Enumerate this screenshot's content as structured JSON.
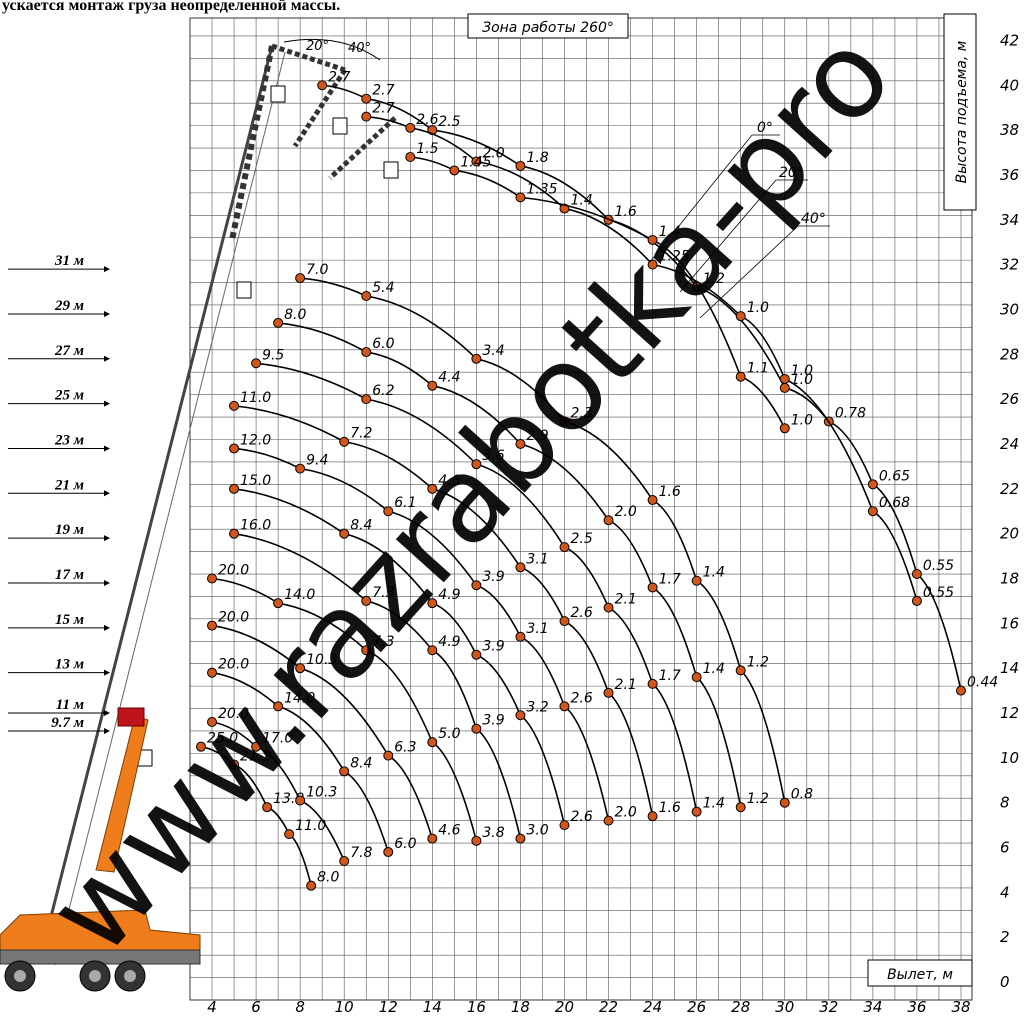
{
  "header_text": "ускается монтаж груза неопределенной массы.",
  "watermark": "www.razrabotka-pro",
  "work_zone": "Зона работы 260°",
  "angle_arc_labels": [
    "20°",
    "40°"
  ],
  "jib_angles": [
    "0°",
    "20°",
    "40°"
  ],
  "chart_data": {
    "type": "line",
    "xlabel": "Вылет, м",
    "ylabel": "Высота подъема, м",
    "xlim": [
      3,
      38.5
    ],
    "ylim": [
      -0.8,
      43
    ],
    "x_ticks": [
      "4",
      "6",
      "8",
      "10",
      "12",
      "14",
      "16",
      "18",
      "20",
      "22",
      "24",
      "26",
      "28",
      "30",
      "32",
      "34",
      "36",
      "38"
    ],
    "y_ticks": [
      "0",
      "2",
      "4",
      "6",
      "8",
      "10",
      "12",
      "14",
      "16",
      "18",
      "20",
      "22",
      "24",
      "26",
      "28",
      "30",
      "32",
      "34",
      "36",
      "38",
      "40",
      "42"
    ],
    "boom_length_labels": [
      {
        "label": "31 м",
        "y": 31.8
      },
      {
        "label": "29 м",
        "y": 29.8
      },
      {
        "label": "27 м",
        "y": 27.8
      },
      {
        "label": "25 м",
        "y": 25.8
      },
      {
        "label": "23 м",
        "y": 23.8
      },
      {
        "label": "21 м",
        "y": 21.8
      },
      {
        "label": "19 м",
        "y": 19.8
      },
      {
        "label": "17 м",
        "y": 17.8
      },
      {
        "label": "15 м",
        "y": 15.8
      },
      {
        "label": "13 м",
        "y": 13.8
      },
      {
        "label": "11 м",
        "y": 12.0
      },
      {
        "label": "9.7 м",
        "y": 11.2
      }
    ],
    "series": [
      {
        "points": [
          {
            "x": 3.5,
            "y": 10.5,
            "label": "25.0"
          },
          {
            "x": 5.0,
            "y": 9.7,
            "label": "21.2"
          },
          {
            "x": 6.5,
            "y": 7.8,
            "label": "13.0"
          },
          {
            "x": 7.5,
            "y": 6.6,
            "label": "11.0"
          },
          {
            "x": 8.5,
            "y": 4.3,
            "label": "8.0"
          }
        ]
      },
      {
        "points": [
          {
            "x": 4.0,
            "y": 11.6,
            "label": "20.0"
          },
          {
            "x": 6.0,
            "y": 10.5,
            "label": "17.0"
          },
          {
            "x": 8.0,
            "y": 8.1,
            "label": "10.3"
          },
          {
            "x": 10.0,
            "y": 5.4,
            "label": "7.8"
          }
        ]
      },
      {
        "points": [
          {
            "x": 4.0,
            "y": 13.8,
            "label": "20.0"
          },
          {
            "x": 7.0,
            "y": 12.3,
            "label": "14.0"
          },
          {
            "x": 10.0,
            "y": 9.4,
            "label": "8.4"
          },
          {
            "x": 12.0,
            "y": 5.8,
            "label": "6.0"
          }
        ]
      },
      {
        "points": [
          {
            "x": 4.0,
            "y": 15.9,
            "label": "20.0"
          },
          {
            "x": 8.0,
            "y": 14.0,
            "label": "10.3"
          },
          {
            "x": 12.0,
            "y": 10.1,
            "label": "6.3"
          },
          {
            "x": 14.0,
            "y": 6.4,
            "label": "4.6"
          }
        ]
      },
      {
        "points": [
          {
            "x": 4.0,
            "y": 18.0,
            "label": "20.0"
          },
          {
            "x": 7.0,
            "y": 16.9,
            "label": "14.0"
          },
          {
            "x": 11.0,
            "y": 14.8,
            "label": "7.3"
          },
          {
            "x": 14.0,
            "y": 10.7,
            "label": "5.0"
          },
          {
            "x": 16.0,
            "y": 6.3,
            "label": "3.8"
          }
        ]
      },
      {
        "points": [
          {
            "x": 5.0,
            "y": 20.0,
            "label": "16.0"
          },
          {
            "x": 11.0,
            "y": 17.0,
            "label": "7.3"
          },
          {
            "x": 14.0,
            "y": 14.8,
            "label": "4.9"
          },
          {
            "x": 16.0,
            "y": 11.3,
            "label": "3.9"
          },
          {
            "x": 18.0,
            "y": 6.4,
            "label": "3.0"
          }
        ]
      },
      {
        "points": [
          {
            "x": 5.0,
            "y": 22.0,
            "label": "15.0"
          },
          {
            "x": 10.0,
            "y": 20.0,
            "label": "8.4"
          },
          {
            "x": 14.0,
            "y": 16.9,
            "label": "4.9"
          },
          {
            "x": 16.0,
            "y": 14.6,
            "label": "3.9"
          },
          {
            "x": 18.0,
            "y": 11.9,
            "label": "3.2"
          },
          {
            "x": 20.0,
            "y": 7.0,
            "label": "2.6"
          }
        ]
      },
      {
        "points": [
          {
            "x": 5.0,
            "y": 23.8,
            "label": "12.0"
          },
          {
            "x": 8.0,
            "y": 22.9,
            "label": "9.4"
          },
          {
            "x": 12.0,
            "y": 21.0,
            "label": "6.1"
          },
          {
            "x": 16.0,
            "y": 17.7,
            "label": "3.9"
          },
          {
            "x": 18.0,
            "y": 15.4,
            "label": "3.1"
          },
          {
            "x": 20.0,
            "y": 12.3,
            "label": "2.6"
          },
          {
            "x": 22.0,
            "y": 7.2,
            "label": "2.0"
          }
        ]
      },
      {
        "points": [
          {
            "x": 5.0,
            "y": 25.7,
            "label": "11.0"
          },
          {
            "x": 10.0,
            "y": 24.1,
            "label": "7.2"
          },
          {
            "x": 14.0,
            "y": 22.0,
            "label": "4.6"
          },
          {
            "x": 18.0,
            "y": 18.5,
            "label": "3.1"
          },
          {
            "x": 20.0,
            "y": 16.1,
            "label": "2.6"
          },
          {
            "x": 22.0,
            "y": 12.9,
            "label": "2.1"
          },
          {
            "x": 24.0,
            "y": 7.4,
            "label": "1.6"
          }
        ]
      },
      {
        "points": [
          {
            "x": 6.0,
            "y": 27.6,
            "label": "9.5"
          },
          {
            "x": 11.0,
            "y": 26.0,
            "label": "6.2"
          },
          {
            "x": 16.0,
            "y": 23.1,
            "label": "3.6"
          },
          {
            "x": 20.0,
            "y": 19.4,
            "label": "2.5"
          },
          {
            "x": 22.0,
            "y": 16.7,
            "label": "2.1"
          },
          {
            "x": 24.0,
            "y": 13.3,
            "label": "1.7"
          },
          {
            "x": 26.0,
            "y": 7.6,
            "label": "1.4"
          }
        ]
      },
      {
        "points": [
          {
            "x": 7.0,
            "y": 29.4,
            "label": "8.0"
          },
          {
            "x": 11.0,
            "y": 28.1,
            "label": "6.0"
          },
          {
            "x": 14.0,
            "y": 26.6,
            "label": "4.4"
          },
          {
            "x": 18.0,
            "y": 24.0,
            "label": "2.9"
          },
          {
            "x": 22.0,
            "y": 20.6,
            "label": "2.0"
          },
          {
            "x": 24.0,
            "y": 17.6,
            "label": "1.7"
          },
          {
            "x": 26.0,
            "y": 13.6,
            "label": "1.4"
          },
          {
            "x": 28.0,
            "y": 7.8,
            "label": "1.2"
          }
        ]
      },
      {
        "points": [
          {
            "x": 8.0,
            "y": 31.4,
            "label": "7.0"
          },
          {
            "x": 11.0,
            "y": 30.6,
            "label": "5.4"
          },
          {
            "x": 16.0,
            "y": 27.8,
            "label": "3.4"
          },
          {
            "x": 20.0,
            "y": 25.0,
            "label": "2.3"
          },
          {
            "x": 24.0,
            "y": 21.5,
            "label": "1.6"
          },
          {
            "x": 26.0,
            "y": 17.9,
            "label": "1.4"
          },
          {
            "x": 28.0,
            "y": 13.9,
            "label": "1.2"
          },
          {
            "x": 30.0,
            "y": 8.0,
            "label": "0.8"
          }
        ]
      },
      {
        "points": [
          {
            "x": 9.0,
            "y": 40.0,
            "label": "2.7"
          },
          {
            "x": 11.0,
            "y": 39.4,
            "label": "2.7"
          },
          {
            "x": 14.0,
            "y": 38.0,
            "label": "2.5"
          },
          {
            "x": 18.0,
            "y": 36.4,
            "label": "1.8"
          },
          {
            "x": 22.0,
            "y": 34.0,
            "label": "1.6"
          },
          {
            "x": 26.0,
            "y": 31.0,
            "label": "1.2"
          },
          {
            "x": 30.0,
            "y": 26.5,
            "label": "1.0"
          },
          {
            "x": 32.0,
            "y": 25.0,
            "label": "0.78"
          },
          {
            "x": 34.0,
            "y": 22.2,
            "label": "0.65"
          },
          {
            "x": 36.0,
            "y": 18.2,
            "label": "0.55"
          },
          {
            "x": 38.0,
            "y": 13.0,
            "label": "0.44"
          }
        ]
      },
      {
        "points": [
          {
            "x": 11.0,
            "y": 38.6,
            "label": "2.7"
          },
          {
            "x": 13.0,
            "y": 38.1,
            "label": "2.6"
          },
          {
            "x": 16.0,
            "y": 36.6,
            "label": "2.0"
          },
          {
            "x": 20.0,
            "y": 34.5,
            "label": "1.4"
          },
          {
            "x": 24.0,
            "y": 32.0,
            "label": "1.25"
          },
          {
            "x": 28.0,
            "y": 29.7,
            "label": "1.0"
          },
          {
            "x": 30.0,
            "y": 26.9,
            "label": "1.0"
          },
          {
            "x": 34.0,
            "y": 21.0,
            "label": "0.68"
          },
          {
            "x": 36.0,
            "y": 17.0,
            "label": "0.55"
          }
        ]
      },
      {
        "points": [
          {
            "x": 13.0,
            "y": 36.8,
            "label": "1.5"
          },
          {
            "x": 15.0,
            "y": 36.2,
            "label": "1.45"
          },
          {
            "x": 18.0,
            "y": 35.0,
            "label": "1.35"
          },
          {
            "x": 24.0,
            "y": 33.1,
            "label": "1.4"
          },
          {
            "x": 28.0,
            "y": 27.0,
            "label": "1.1"
          },
          {
            "x": 30.0,
            "y": 24.7,
            "label": "1.0"
          }
        ]
      }
    ]
  }
}
